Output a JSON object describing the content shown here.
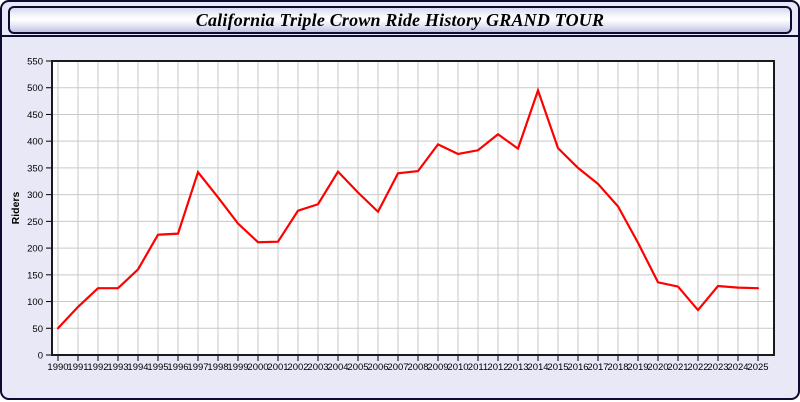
{
  "window": {
    "title": "California Triple Crown Ride History GRAND TOUR"
  },
  "theme": {
    "panel_bg": "#e8e8f7",
    "border_color": "#0c0c33",
    "plot_bg": "#ffffff",
    "grid_color": "#c9c9c9",
    "plot_border_color": "#1a1a1a",
    "tick_color": "#000000",
    "label_color": "#000000",
    "line_color": "#ff0000"
  },
  "chart_data": {
    "type": "line",
    "title": "California Triple Crown Ride History GRAND TOUR",
    "xlabel": "",
    "ylabel": "Riders",
    "legend_position": "none",
    "grid": true,
    "ylim": [
      0,
      550
    ],
    "y_ticks": [
      0,
      50,
      100,
      150,
      200,
      250,
      300,
      350,
      400,
      450,
      500,
      550
    ],
    "x": [
      1990,
      1991,
      1992,
      1993,
      1994,
      1995,
      1996,
      1997,
      1998,
      1999,
      2000,
      2001,
      2002,
      2003,
      2004,
      2005,
      2006,
      2007,
      2008,
      2009,
      2010,
      2011,
      2012,
      2013,
      2014,
      2015,
      2016,
      2017,
      2018,
      2019,
      2020,
      2021,
      2022,
      2023,
      2024,
      2025
    ],
    "series": [
      {
        "name": "Riders",
        "values": [
          50,
          90,
          125,
          125,
          160,
          225,
          227,
          342,
          295,
          246,
          211,
          212,
          270,
          282,
          343,
          304,
          268,
          340,
          344,
          394,
          376,
          383,
          413,
          386,
          495,
          387,
          350,
          320,
          278,
          210,
          136,
          128,
          84,
          129,
          126,
          125
        ]
      }
    ]
  }
}
